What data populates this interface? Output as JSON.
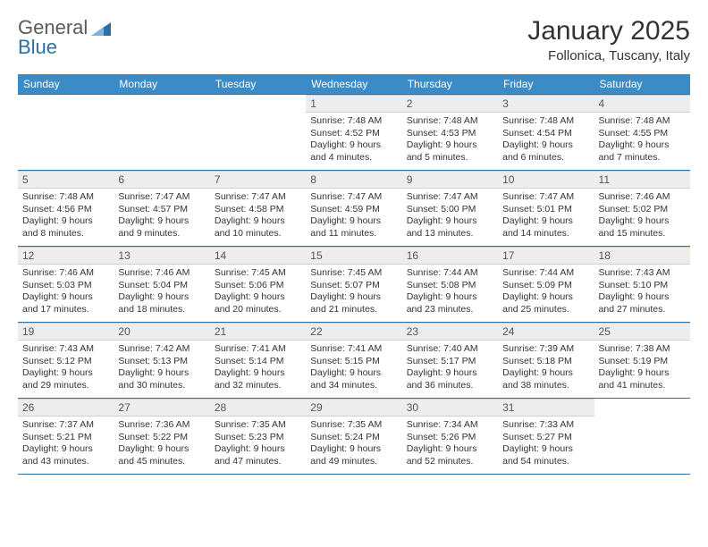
{
  "brand": {
    "part1": "General",
    "part2": "Blue"
  },
  "title": "January 2025",
  "subtitle": "Follonica, Tuscany, Italy",
  "colors": {
    "header_bg": "#3b8bc6",
    "header_text": "#ffffff",
    "rule": "#2f6fa8",
    "daynum_bg": "#ededed",
    "text": "#333333"
  },
  "weekdays": [
    "Sunday",
    "Monday",
    "Tuesday",
    "Wednesday",
    "Thursday",
    "Friday",
    "Saturday"
  ],
  "leading_blanks": 3,
  "days": [
    {
      "n": "1",
      "sunrise": "7:48 AM",
      "sunset": "4:52 PM",
      "daylight": "9 hours and 4 minutes."
    },
    {
      "n": "2",
      "sunrise": "7:48 AM",
      "sunset": "4:53 PM",
      "daylight": "9 hours and 5 minutes."
    },
    {
      "n": "3",
      "sunrise": "7:48 AM",
      "sunset": "4:54 PM",
      "daylight": "9 hours and 6 minutes."
    },
    {
      "n": "4",
      "sunrise": "7:48 AM",
      "sunset": "4:55 PM",
      "daylight": "9 hours and 7 minutes."
    },
    {
      "n": "5",
      "sunrise": "7:48 AM",
      "sunset": "4:56 PM",
      "daylight": "9 hours and 8 minutes."
    },
    {
      "n": "6",
      "sunrise": "7:47 AM",
      "sunset": "4:57 PM",
      "daylight": "9 hours and 9 minutes."
    },
    {
      "n": "7",
      "sunrise": "7:47 AM",
      "sunset": "4:58 PM",
      "daylight": "9 hours and 10 minutes."
    },
    {
      "n": "8",
      "sunrise": "7:47 AM",
      "sunset": "4:59 PM",
      "daylight": "9 hours and 11 minutes."
    },
    {
      "n": "9",
      "sunrise": "7:47 AM",
      "sunset": "5:00 PM",
      "daylight": "9 hours and 13 minutes."
    },
    {
      "n": "10",
      "sunrise": "7:47 AM",
      "sunset": "5:01 PM",
      "daylight": "9 hours and 14 minutes."
    },
    {
      "n": "11",
      "sunrise": "7:46 AM",
      "sunset": "5:02 PM",
      "daylight": "9 hours and 15 minutes."
    },
    {
      "n": "12",
      "sunrise": "7:46 AM",
      "sunset": "5:03 PM",
      "daylight": "9 hours and 17 minutes."
    },
    {
      "n": "13",
      "sunrise": "7:46 AM",
      "sunset": "5:04 PM",
      "daylight": "9 hours and 18 minutes."
    },
    {
      "n": "14",
      "sunrise": "7:45 AM",
      "sunset": "5:06 PM",
      "daylight": "9 hours and 20 minutes."
    },
    {
      "n": "15",
      "sunrise": "7:45 AM",
      "sunset": "5:07 PM",
      "daylight": "9 hours and 21 minutes."
    },
    {
      "n": "16",
      "sunrise": "7:44 AM",
      "sunset": "5:08 PM",
      "daylight": "9 hours and 23 minutes."
    },
    {
      "n": "17",
      "sunrise": "7:44 AM",
      "sunset": "5:09 PM",
      "daylight": "9 hours and 25 minutes."
    },
    {
      "n": "18",
      "sunrise": "7:43 AM",
      "sunset": "5:10 PM",
      "daylight": "9 hours and 27 minutes."
    },
    {
      "n": "19",
      "sunrise": "7:43 AM",
      "sunset": "5:12 PM",
      "daylight": "9 hours and 29 minutes."
    },
    {
      "n": "20",
      "sunrise": "7:42 AM",
      "sunset": "5:13 PM",
      "daylight": "9 hours and 30 minutes."
    },
    {
      "n": "21",
      "sunrise": "7:41 AM",
      "sunset": "5:14 PM",
      "daylight": "9 hours and 32 minutes."
    },
    {
      "n": "22",
      "sunrise": "7:41 AM",
      "sunset": "5:15 PM",
      "daylight": "9 hours and 34 minutes."
    },
    {
      "n": "23",
      "sunrise": "7:40 AM",
      "sunset": "5:17 PM",
      "daylight": "9 hours and 36 minutes."
    },
    {
      "n": "24",
      "sunrise": "7:39 AM",
      "sunset": "5:18 PM",
      "daylight": "9 hours and 38 minutes."
    },
    {
      "n": "25",
      "sunrise": "7:38 AM",
      "sunset": "5:19 PM",
      "daylight": "9 hours and 41 minutes."
    },
    {
      "n": "26",
      "sunrise": "7:37 AM",
      "sunset": "5:21 PM",
      "daylight": "9 hours and 43 minutes."
    },
    {
      "n": "27",
      "sunrise": "7:36 AM",
      "sunset": "5:22 PM",
      "daylight": "9 hours and 45 minutes."
    },
    {
      "n": "28",
      "sunrise": "7:35 AM",
      "sunset": "5:23 PM",
      "daylight": "9 hours and 47 minutes."
    },
    {
      "n": "29",
      "sunrise": "7:35 AM",
      "sunset": "5:24 PM",
      "daylight": "9 hours and 49 minutes."
    },
    {
      "n": "30",
      "sunrise": "7:34 AM",
      "sunset": "5:26 PM",
      "daylight": "9 hours and 52 minutes."
    },
    {
      "n": "31",
      "sunrise": "7:33 AM",
      "sunset": "5:27 PM",
      "daylight": "9 hours and 54 minutes."
    }
  ],
  "labels": {
    "sunrise_prefix": "Sunrise: ",
    "sunset_prefix": "Sunset: ",
    "daylight_prefix": "Daylight: "
  }
}
